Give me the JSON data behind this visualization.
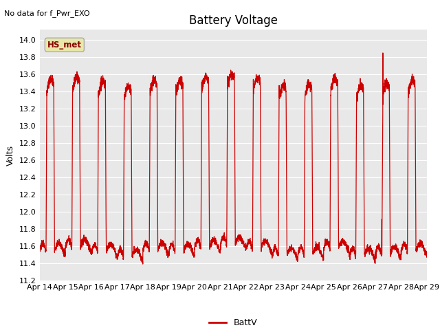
{
  "title": "Battery Voltage",
  "top_left_text": "No data for f_Pwr_EXO",
  "ylabel": "Volts",
  "legend_label": "BattV",
  "line_color": "#cc0000",
  "ylim": [
    11.2,
    14.12
  ],
  "yticks": [
    11.2,
    11.4,
    11.6,
    11.8,
    12.0,
    12.2,
    12.4,
    12.6,
    12.8,
    13.0,
    13.2,
    13.4,
    13.6,
    13.8,
    14.0
  ],
  "xtick_labels": [
    "Apr 14",
    "Apr 15",
    "Apr 16",
    "Apr 17",
    "Apr 18",
    "Apr 19",
    "Apr 20",
    "Apr 21",
    "Apr 22",
    "Apr 23",
    "Apr 24",
    "Apr 25",
    "Apr 26",
    "Apr 27",
    "Apr 28",
    "Apr 29"
  ],
  "fig_bg_color": "#ffffff",
  "plot_bg_color": "#e8e8e8",
  "grid_color": "#ffffff",
  "annotation_box_facecolor": "#e8e8aa",
  "annotation_box_edgecolor": "#aaaaaa",
  "annotation_text": "HS_met",
  "annotation_text_color": "#880000",
  "title_fontsize": 12,
  "label_fontsize": 9,
  "tick_fontsize": 8
}
